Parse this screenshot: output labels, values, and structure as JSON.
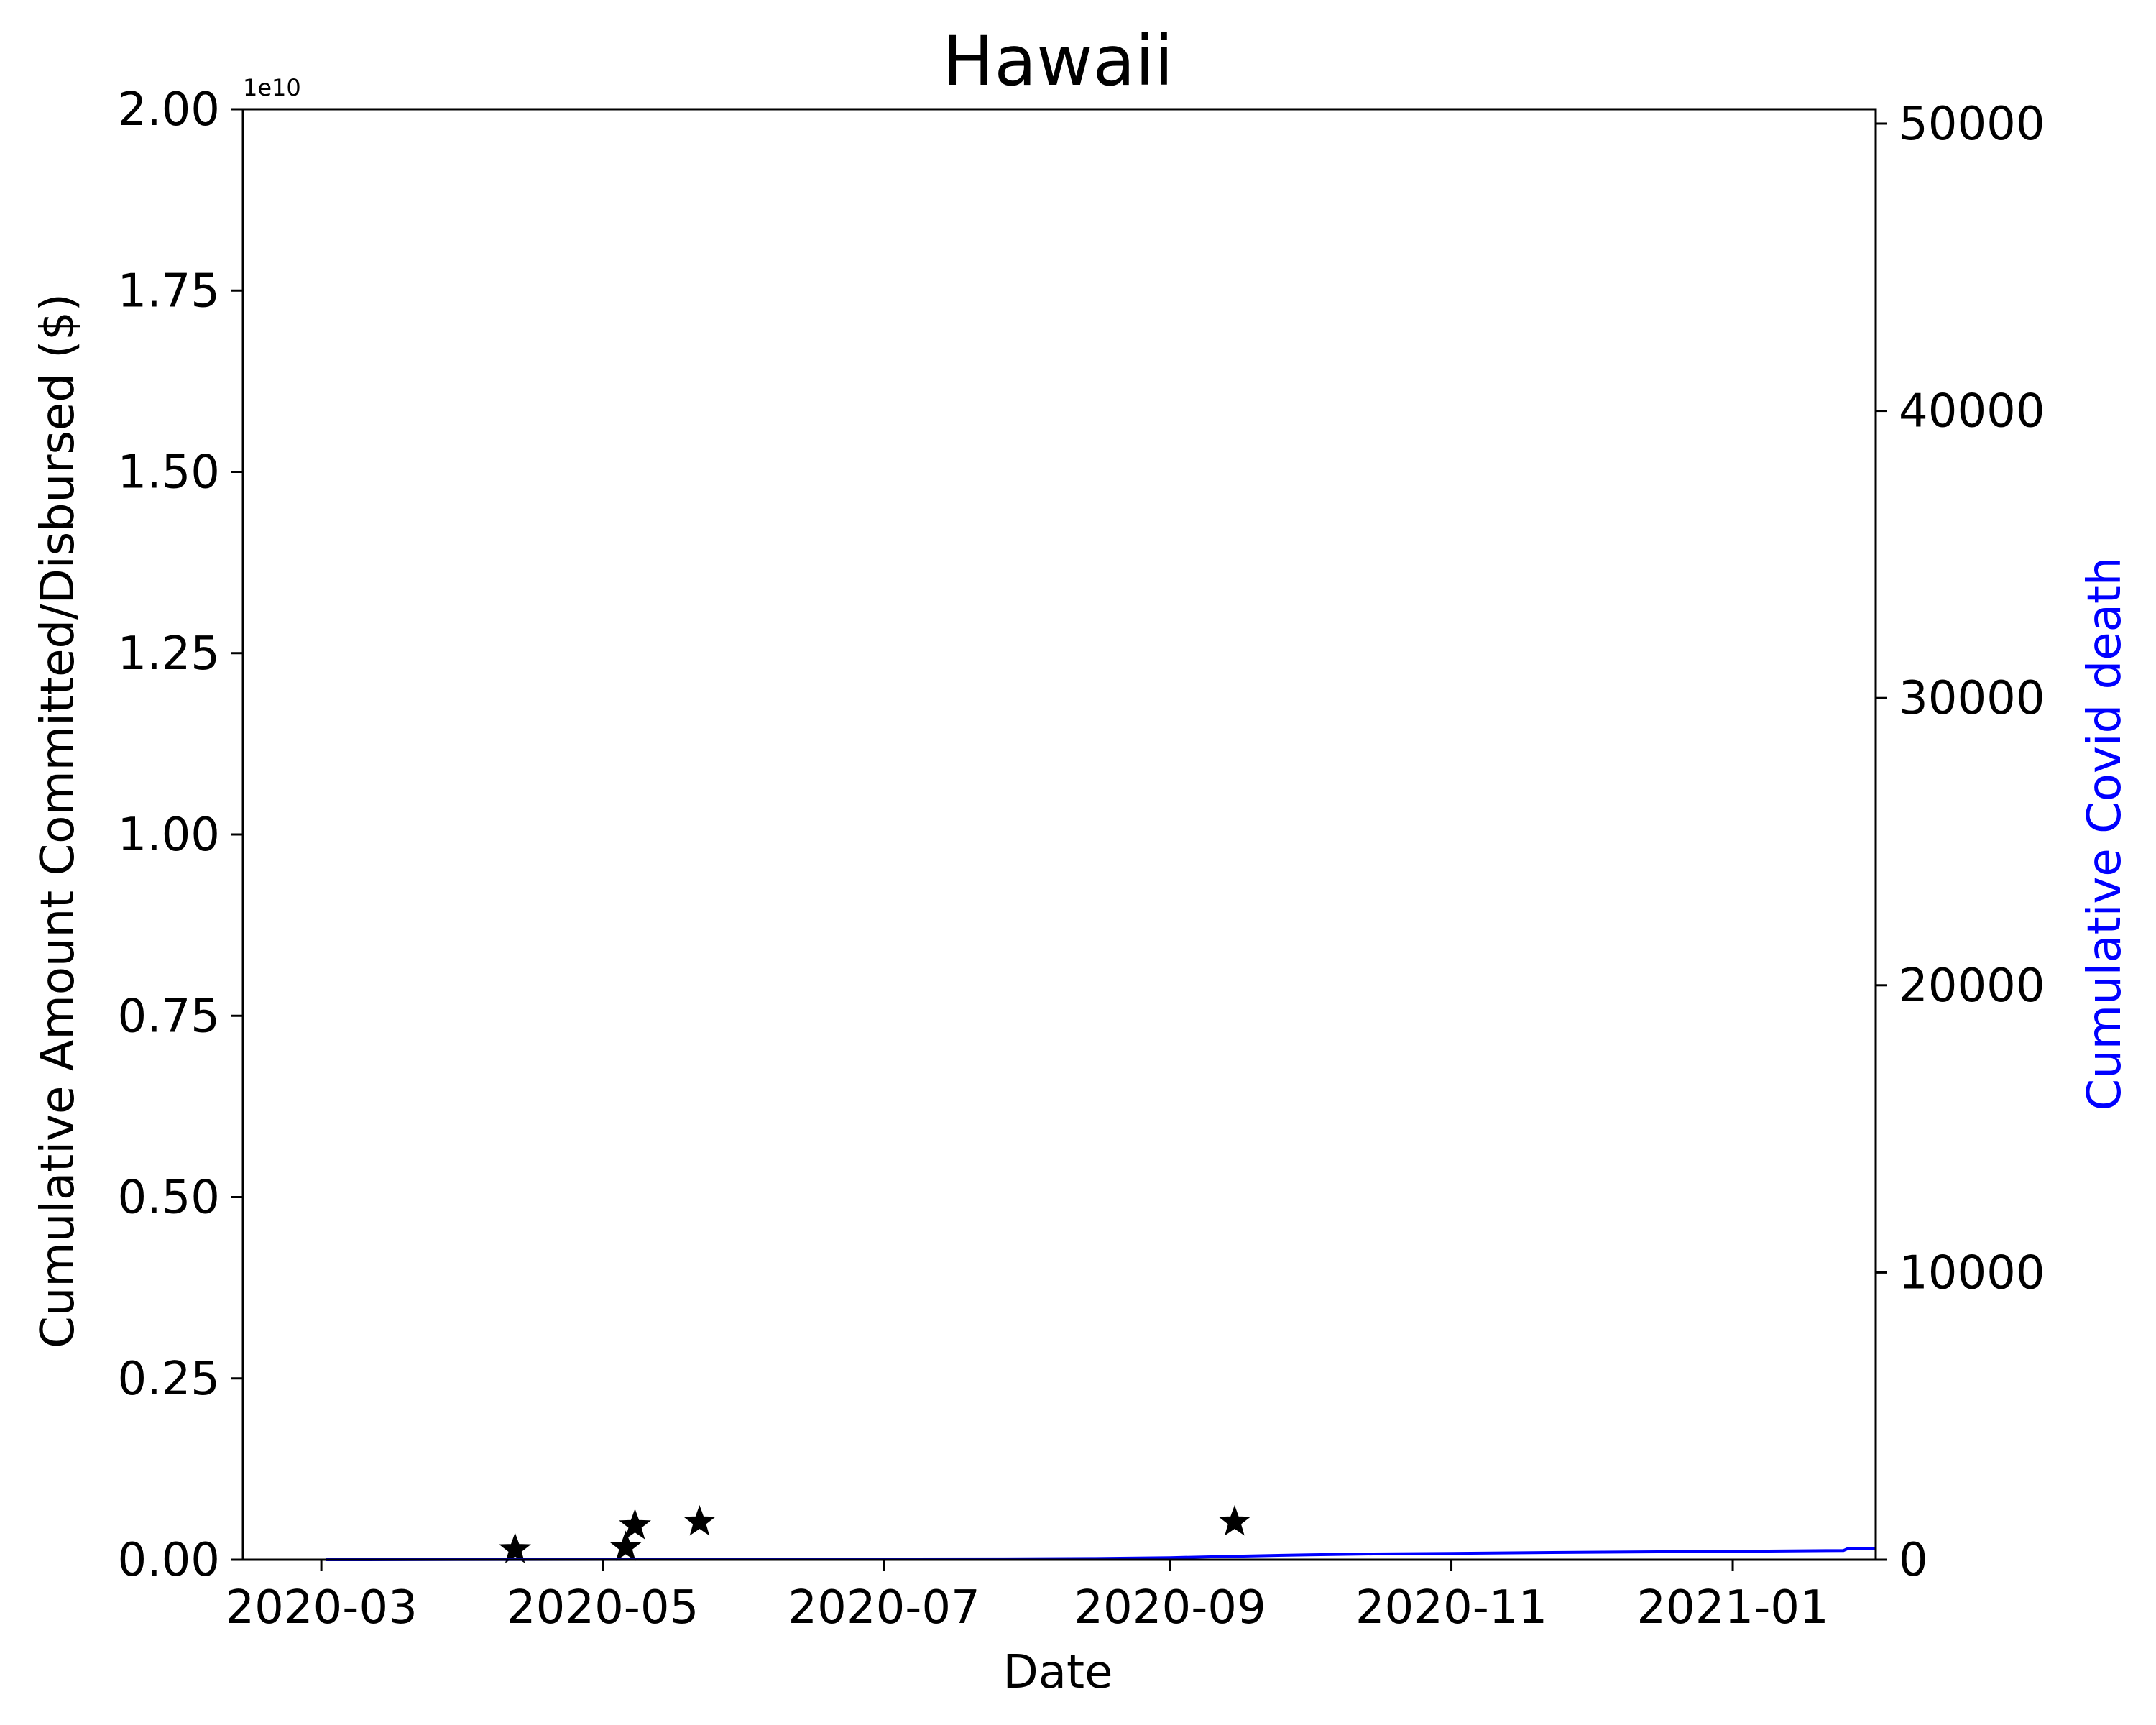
{
  "chart_data": {
    "type": "line",
    "title": "Hawaii",
    "xlabel": "Date",
    "ylabel": "Cumulative Amount Committed/Disbursed ($)",
    "y2label": "Cumulative Covid death",
    "y_offset_label": "1e10",
    "colors": {
      "deaths": "#0000ff",
      "funding": "#000000",
      "axes": "#000000"
    },
    "x_range": [
      "2020-02-13",
      "2021-02-01"
    ],
    "x_ticks": [
      "2020-03",
      "2020-05",
      "2020-07",
      "2020-09",
      "2020-11",
      "2021-01"
    ],
    "ylim": [
      0,
      20000000000
    ],
    "y_ticks": [
      "0.00",
      "0.25",
      "0.50",
      "0.75",
      "1.00",
      "1.25",
      "1.50",
      "1.75",
      "2.00"
    ],
    "y2lim": [
      0,
      50500
    ],
    "y2_ticks": [
      "0",
      "10000",
      "20000",
      "30000",
      "40000",
      "50000"
    ],
    "series": [
      {
        "name": "",
        "axis": "left",
        "marker": "star",
        "points": [
          {
            "x": "2020-04-12",
            "y": 140000000
          },
          {
            "x": "2020-05-06",
            "y": 170000000
          },
          {
            "x": "2020-05-08",
            "y": 470000000
          },
          {
            "x": "2020-05-22",
            "y": 520000000
          },
          {
            "x": "2020-09-15",
            "y": 520000000
          }
        ]
      },
      {
        "name": "",
        "axis": "right",
        "marker": "line",
        "points": [
          {
            "x": "2020-03-02",
            "y": 0
          },
          {
            "x": "2020-04-01",
            "y": 5
          },
          {
            "x": "2020-06-01",
            "y": 17
          },
          {
            "x": "2020-08-01",
            "y": 30
          },
          {
            "x": "2020-08-15",
            "y": 40
          },
          {
            "x": "2020-09-01",
            "y": 70
          },
          {
            "x": "2020-09-15",
            "y": 120
          },
          {
            "x": "2020-10-01",
            "y": 170
          },
          {
            "x": "2020-10-15",
            "y": 200
          },
          {
            "x": "2020-11-01",
            "y": 220
          },
          {
            "x": "2020-12-01",
            "y": 260
          },
          {
            "x": "2021-01-01",
            "y": 290
          },
          {
            "x": "2021-01-25",
            "y": 320
          },
          {
            "x": "2021-01-26",
            "y": 390
          },
          {
            "x": "2021-02-01",
            "y": 400
          }
        ]
      }
    ]
  }
}
